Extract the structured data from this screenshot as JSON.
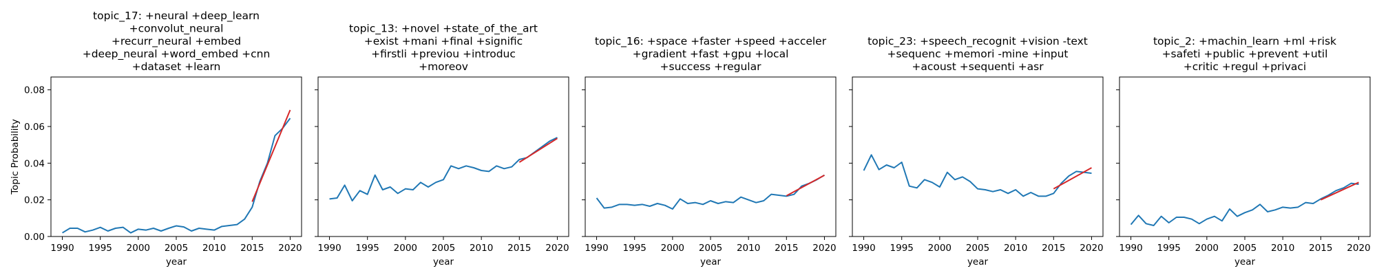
{
  "chart_data": [
    {
      "type": "line",
      "title_lines": [
        "topic_17: +neural +deep_learn",
        "+convolut_neural",
        "+recurr_neural +embed",
        "+deep_neural +word_embed +cnn",
        "+dataset +learn"
      ],
      "xlabel": "year",
      "ylabel": "Topic Probability",
      "xlim": [
        1988.5,
        2021.5
      ],
      "ylim": [
        0,
        0.087
      ],
      "xticks": [
        "1990",
        "1995",
        "2000",
        "2005",
        "2010",
        "2015",
        "2020"
      ],
      "yticks": [
        "0.00",
        "0.02",
        "0.04",
        "0.06",
        "0.08"
      ],
      "show_ytick_labels": true,
      "series": [
        {
          "color": "#1f77b4",
          "x": [
            1990,
            1991,
            1992,
            1993,
            1994,
            1995,
            1996,
            1997,
            1998,
            1999,
            2000,
            2001,
            2002,
            2003,
            2004,
            2005,
            2006,
            2007,
            2008,
            2009,
            2010,
            2011,
            2012,
            2013,
            2014,
            2015,
            2016,
            2017,
            2018,
            2019,
            2020
          ],
          "y": [
            0.002,
            0.0045,
            0.0045,
            0.0025,
            0.0035,
            0.005,
            0.003,
            0.0045,
            0.005,
            0.002,
            0.004,
            0.0035,
            0.0045,
            0.003,
            0.0045,
            0.0058,
            0.0052,
            0.003,
            0.0045,
            0.004,
            0.0035,
            0.0055,
            0.006,
            0.0065,
            0.0095,
            0.016,
            0.03,
            0.04,
            0.055,
            0.059,
            0.0645
          ]
        },
        {
          "color": "#d62728",
          "x": [
            2015,
            2020
          ],
          "y": [
            0.019,
            0.069
          ]
        }
      ]
    },
    {
      "type": "line",
      "title_lines": [
        "topic_13: +novel +state_of_the_art",
        "+exist +mani +final +signific",
        "+firstli +previou +introduc",
        "+moreov"
      ],
      "xlabel": "year",
      "xlim": [
        1988.5,
        2021.5
      ],
      "ylim": [
        0,
        0.087
      ],
      "xticks": [
        "1990",
        "1995",
        "2000",
        "2005",
        "2010",
        "2015",
        "2020"
      ],
      "yticks": [
        "0.00",
        "0.02",
        "0.04",
        "0.06",
        "0.08"
      ],
      "show_ytick_labels": false,
      "series": [
        {
          "color": "#1f77b4",
          "x": [
            1990,
            1991,
            1992,
            1993,
            1994,
            1995,
            1996,
            1997,
            1998,
            1999,
            2000,
            2001,
            2002,
            2003,
            2004,
            2005,
            2006,
            2007,
            2008,
            2009,
            2010,
            2011,
            2012,
            2013,
            2014,
            2015,
            2016,
            2017,
            2018,
            2019,
            2020
          ],
          "y": [
            0.0205,
            0.021,
            0.028,
            0.0195,
            0.025,
            0.023,
            0.0335,
            0.0255,
            0.027,
            0.0235,
            0.026,
            0.0255,
            0.0295,
            0.027,
            0.0295,
            0.031,
            0.0385,
            0.037,
            0.0385,
            0.0375,
            0.036,
            0.0355,
            0.0385,
            0.037,
            0.038,
            0.042,
            0.043,
            0.046,
            0.049,
            0.052,
            0.054
          ]
        },
        {
          "color": "#d62728",
          "x": [
            2015,
            2020
          ],
          "y": [
            0.0405,
            0.0535
          ]
        }
      ]
    },
    {
      "type": "line",
      "title_lines": [
        "topic_16: +space +faster +speed +acceler",
        "+gradient +fast +gpu +local",
        "+success +regular"
      ],
      "xlabel": "year",
      "xlim": [
        1988.5,
        2021.5
      ],
      "ylim": [
        0,
        0.087
      ],
      "xticks": [
        "1990",
        "1995",
        "2000",
        "2005",
        "2010",
        "2015",
        "2020"
      ],
      "yticks": [
        "0.00",
        "0.02",
        "0.04",
        "0.06",
        "0.08"
      ],
      "show_ytick_labels": false,
      "series": [
        {
          "color": "#1f77b4",
          "x": [
            1990,
            1991,
            1992,
            1993,
            1994,
            1995,
            1996,
            1997,
            1998,
            1999,
            2000,
            2001,
            2002,
            2003,
            2004,
            2005,
            2006,
            2007,
            2008,
            2009,
            2010,
            2011,
            2012,
            2013,
            2014,
            2015,
            2016,
            2017,
            2018,
            2019,
            2020
          ],
          "y": [
            0.021,
            0.0155,
            0.016,
            0.0175,
            0.0175,
            0.017,
            0.0175,
            0.0165,
            0.018,
            0.017,
            0.015,
            0.0205,
            0.018,
            0.0185,
            0.0175,
            0.0195,
            0.018,
            0.019,
            0.0185,
            0.0215,
            0.02,
            0.0185,
            0.0195,
            0.023,
            0.0225,
            0.022,
            0.023,
            0.0275,
            0.029,
            0.031,
            0.0335
          ]
        },
        {
          "color": "#d62728",
          "x": [
            2015,
            2020
          ],
          "y": [
            0.0222,
            0.0334
          ]
        }
      ]
    },
    {
      "type": "line",
      "title_lines": [
        "topic_23: +speech_recognit +vision -text",
        "+sequenc +memori -mine +input",
        "+acoust +sequenti +asr"
      ],
      "xlabel": "year",
      "xlim": [
        1988.5,
        2021.5
      ],
      "ylim": [
        0,
        0.087
      ],
      "xticks": [
        "1990",
        "1995",
        "2000",
        "2005",
        "2010",
        "2015",
        "2020"
      ],
      "yticks": [
        "0.00",
        "0.02",
        "0.04",
        "0.06",
        "0.08"
      ],
      "show_ytick_labels": false,
      "series": [
        {
          "color": "#1f77b4",
          "x": [
            1990,
            1991,
            1992,
            1993,
            1994,
            1995,
            1996,
            1997,
            1998,
            1999,
            2000,
            2001,
            2002,
            2003,
            2004,
            2005,
            2006,
            2007,
            2008,
            2009,
            2010,
            2011,
            2012,
            2013,
            2014,
            2015,
            2016,
            2017,
            2018,
            2019,
            2020
          ],
          "y": [
            0.036,
            0.0445,
            0.0365,
            0.039,
            0.0375,
            0.0405,
            0.0275,
            0.0265,
            0.031,
            0.0295,
            0.027,
            0.035,
            0.031,
            0.0325,
            0.03,
            0.026,
            0.0255,
            0.0245,
            0.0255,
            0.0235,
            0.0255,
            0.022,
            0.024,
            0.022,
            0.022,
            0.0235,
            0.029,
            0.033,
            0.0355,
            0.035,
            0.0345
          ]
        },
        {
          "color": "#d62728",
          "x": [
            2015,
            2020
          ],
          "y": [
            0.026,
            0.0375
          ]
        }
      ]
    },
    {
      "type": "line",
      "title_lines": [
        "topic_2: +machin_learn +ml +risk",
        "+safeti +public +prevent +util",
        "+critic +regul +privaci"
      ],
      "xlabel": "year",
      "xlim": [
        1988.5,
        2021.5
      ],
      "ylim": [
        0,
        0.087
      ],
      "xticks": [
        "1990",
        "1995",
        "2000",
        "2005",
        "2010",
        "2015",
        "2020"
      ],
      "yticks": [
        "0.00",
        "0.02",
        "0.04",
        "0.06",
        "0.08"
      ],
      "show_ytick_labels": false,
      "series": [
        {
          "color": "#1f77b4",
          "x": [
            1990,
            1991,
            1992,
            1993,
            1994,
            1995,
            1996,
            1997,
            1998,
            1999,
            2000,
            2001,
            2002,
            2003,
            2004,
            2005,
            2006,
            2007,
            2008,
            2009,
            2010,
            2011,
            2012,
            2013,
            2014,
            2015,
            2016,
            2017,
            2018,
            2019,
            2020
          ],
          "y": [
            0.0065,
            0.0115,
            0.007,
            0.006,
            0.011,
            0.0075,
            0.0105,
            0.0105,
            0.0095,
            0.007,
            0.0095,
            0.011,
            0.0085,
            0.015,
            0.011,
            0.013,
            0.0145,
            0.0175,
            0.0135,
            0.0145,
            0.016,
            0.0155,
            0.016,
            0.0185,
            0.018,
            0.0205,
            0.0225,
            0.025,
            0.0265,
            0.029,
            0.0285
          ]
        },
        {
          "color": "#d62728",
          "x": [
            2015,
            2020
          ],
          "y": [
            0.02,
            0.0295
          ]
        }
      ]
    }
  ]
}
